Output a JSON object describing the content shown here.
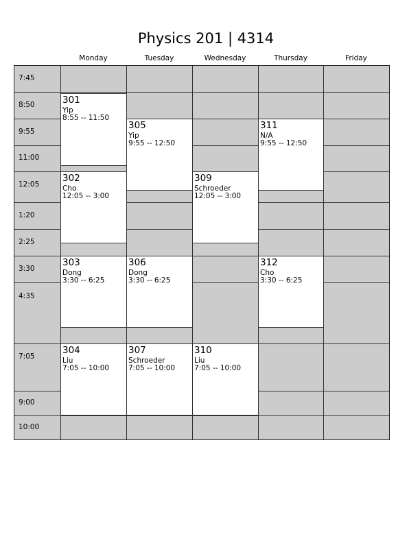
{
  "title": "Physics 201 | 4314",
  "days": [
    "Monday",
    "Tuesday",
    "Wednesday",
    "Thursday",
    "Friday"
  ],
  "time_slots": [
    "7:45",
    "8:50",
    "9:55",
    "11:00",
    "12:05",
    "1:20",
    "2:25",
    "3:30",
    "4:35",
    "7:05",
    "9:00",
    "10:00"
  ],
  "events": [
    {
      "section": "301",
      "instructor": "Yip",
      "time": "8:55 -- 11:50",
      "day": "Monday"
    },
    {
      "section": "302",
      "instructor": "Cho",
      "time": "12:05 -- 3:00",
      "day": "Monday"
    },
    {
      "section": "303",
      "instructor": "Dong",
      "time": "3:30 -- 6:25",
      "day": "Monday"
    },
    {
      "section": "304",
      "instructor": "Liu",
      "time": "7:05 -- 10:00",
      "day": "Monday"
    },
    {
      "section": "305",
      "instructor": "Yip",
      "time": "9:55 -- 12:50",
      "day": "Tuesday"
    },
    {
      "section": "306",
      "instructor": "Dong",
      "time": "3:30 -- 6:25",
      "day": "Tuesday"
    },
    {
      "section": "307",
      "instructor": "Schroeder",
      "time": "7:05 -- 10:00",
      "day": "Tuesday"
    },
    {
      "section": "309",
      "instructor": "Schroeder",
      "time": "12:05 -- 3:00",
      "day": "Wednesday"
    },
    {
      "section": "310",
      "instructor": "Liu",
      "time": "7:05 -- 10:00",
      "day": "Wednesday"
    },
    {
      "section": "311",
      "instructor": "N/A",
      "time": "9:55 -- 12:50",
      "day": "Thursday"
    },
    {
      "section": "312",
      "instructor": "Cho",
      "time": "3:30 -- 6:25",
      "day": "Thursday"
    }
  ],
  "colors": {
    "empty_cell": "#cccccc",
    "event": "#ffffff",
    "border": "#333333"
  }
}
